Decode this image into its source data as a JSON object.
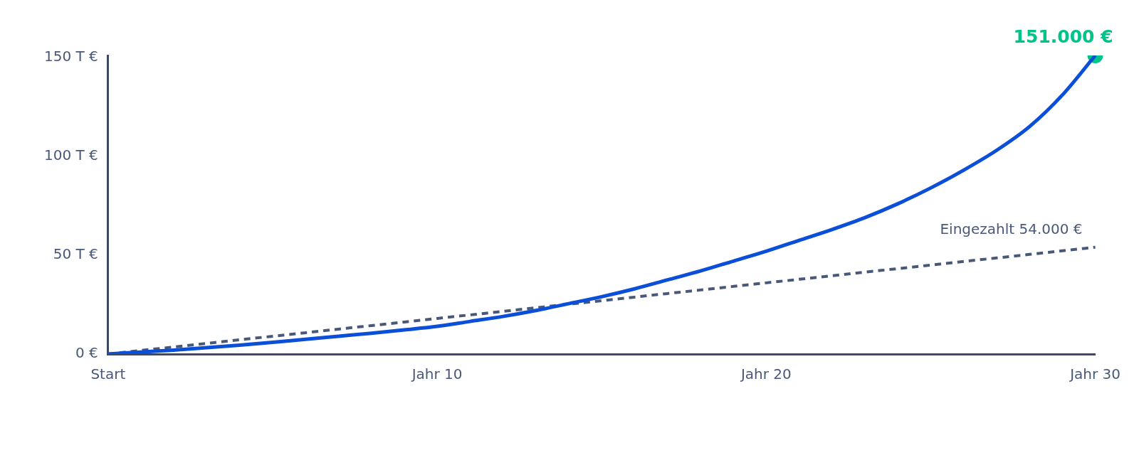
{
  "chart_data": {
    "type": "line",
    "categories": [
      "Start",
      null,
      null,
      null,
      null,
      null,
      null,
      null,
      null,
      null,
      "Jahr 10",
      null,
      null,
      null,
      null,
      null,
      null,
      null,
      null,
      null,
      "Jahr 20",
      null,
      null,
      null,
      null,
      null,
      null,
      null,
      null,
      null,
      "Jahr 30"
    ],
    "series": [
      {
        "color": "#0b4fd8",
        "values": [
          0,
          1,
          2,
          3.2,
          4.5,
          5.9,
          7.5,
          9,
          10.5,
          12.2,
          14,
          16.5,
          19,
          22,
          25.5,
          29,
          33,
          37.5,
          42,
          47,
          52,
          57.5,
          63,
          69,
          76,
          84,
          93,
          103,
          115,
          131,
          151
        ],
        "line_style": "solid",
        "marker": "none"
      },
      {
        "color": "#4a5878",
        "values": [
          0,
          1.8,
          3.6,
          5.4,
          7.2,
          9,
          10.8,
          12.6,
          14.4,
          16.2,
          18,
          19.8,
          21.6,
          23.4,
          25.2,
          27,
          28.8,
          30.6,
          32.4,
          34.2,
          36,
          37.8,
          39.6,
          41.4,
          43.2,
          45,
          46.8,
          48.6,
          50.4,
          52.2,
          54
        ],
        "line_style": "dashed",
        "marker": "none"
      },
      {
        "type": "scatter",
        "color": "#00c389",
        "values": [
          null,
          null,
          null,
          null,
          null,
          null,
          null,
          null,
          null,
          null,
          null,
          null,
          null,
          null,
          null,
          null,
          null,
          null,
          null,
          null,
          null,
          null,
          null,
          null,
          null,
          null,
          null,
          null,
          null,
          null,
          151
        ],
        "marker": "circle"
      }
    ],
    "annotations": [
      {
        "text": "Eingezahlt 54.000 €",
        "x": "Jahr 30",
        "y": 54
      },
      {
        "text": "151.000 €",
        "x": "Jahr 30",
        "y": 151
      }
    ],
    "ylim": [
      0,
      151
    ],
    "yticks": [
      {
        "value": 0,
        "label": "0 €"
      },
      {
        "value": 50,
        "label": "50 T €"
      },
      {
        "value": 100,
        "label": "100 T €"
      },
      {
        "value": 150,
        "label": "150 T €"
      }
    ],
    "grid": false,
    "legend": false
  }
}
